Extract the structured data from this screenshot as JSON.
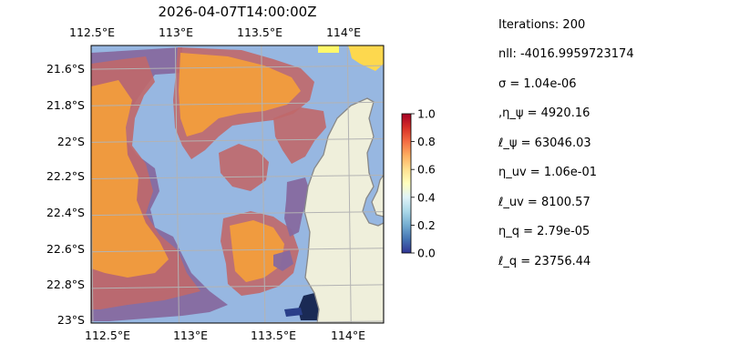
{
  "map": {
    "title": "2026-04-07T14:00:00Z",
    "lon_ticks": [
      "112.5°E",
      "113°E",
      "113.5°E",
      "114°E"
    ],
    "lat_ticks": [
      "21.6°S",
      "21.8°S",
      "22°S",
      "22.2°S",
      "22.4°S",
      "22.6°S",
      "22.8°S",
      "23°S"
    ],
    "extent": {
      "lon": [
        112.5,
        114.2
      ],
      "lat": [
        -23.0,
        -21.48
      ]
    },
    "colors": {
      "ocean": "#97b7e1",
      "land": "#efefdb",
      "coast": "#888888",
      "grid": "#b3b3b3",
      "field_high": "#f5a03a",
      "field_mid": "#c0686a",
      "field_low": "#86699f"
    }
  },
  "colorbar": {
    "ticks": [
      "0.0",
      "0.2",
      "0.4",
      "0.6",
      "0.8",
      "1.0"
    ],
    "range": [
      0.0,
      1.0
    ],
    "colormap": "RdYlBu_r"
  },
  "info": {
    "lines": [
      "Iterations: 200",
      "nll: -4016.9959723174",
      "σ = 1.04e-06",
      ",η_ψ = 4920.16",
      "ℓ_ψ = 63046.03",
      "η_uv = 1.06e-01",
      "ℓ_uv = 8100.57",
      "η_q = 2.79e-05",
      "ℓ_q = 23756.44"
    ]
  }
}
